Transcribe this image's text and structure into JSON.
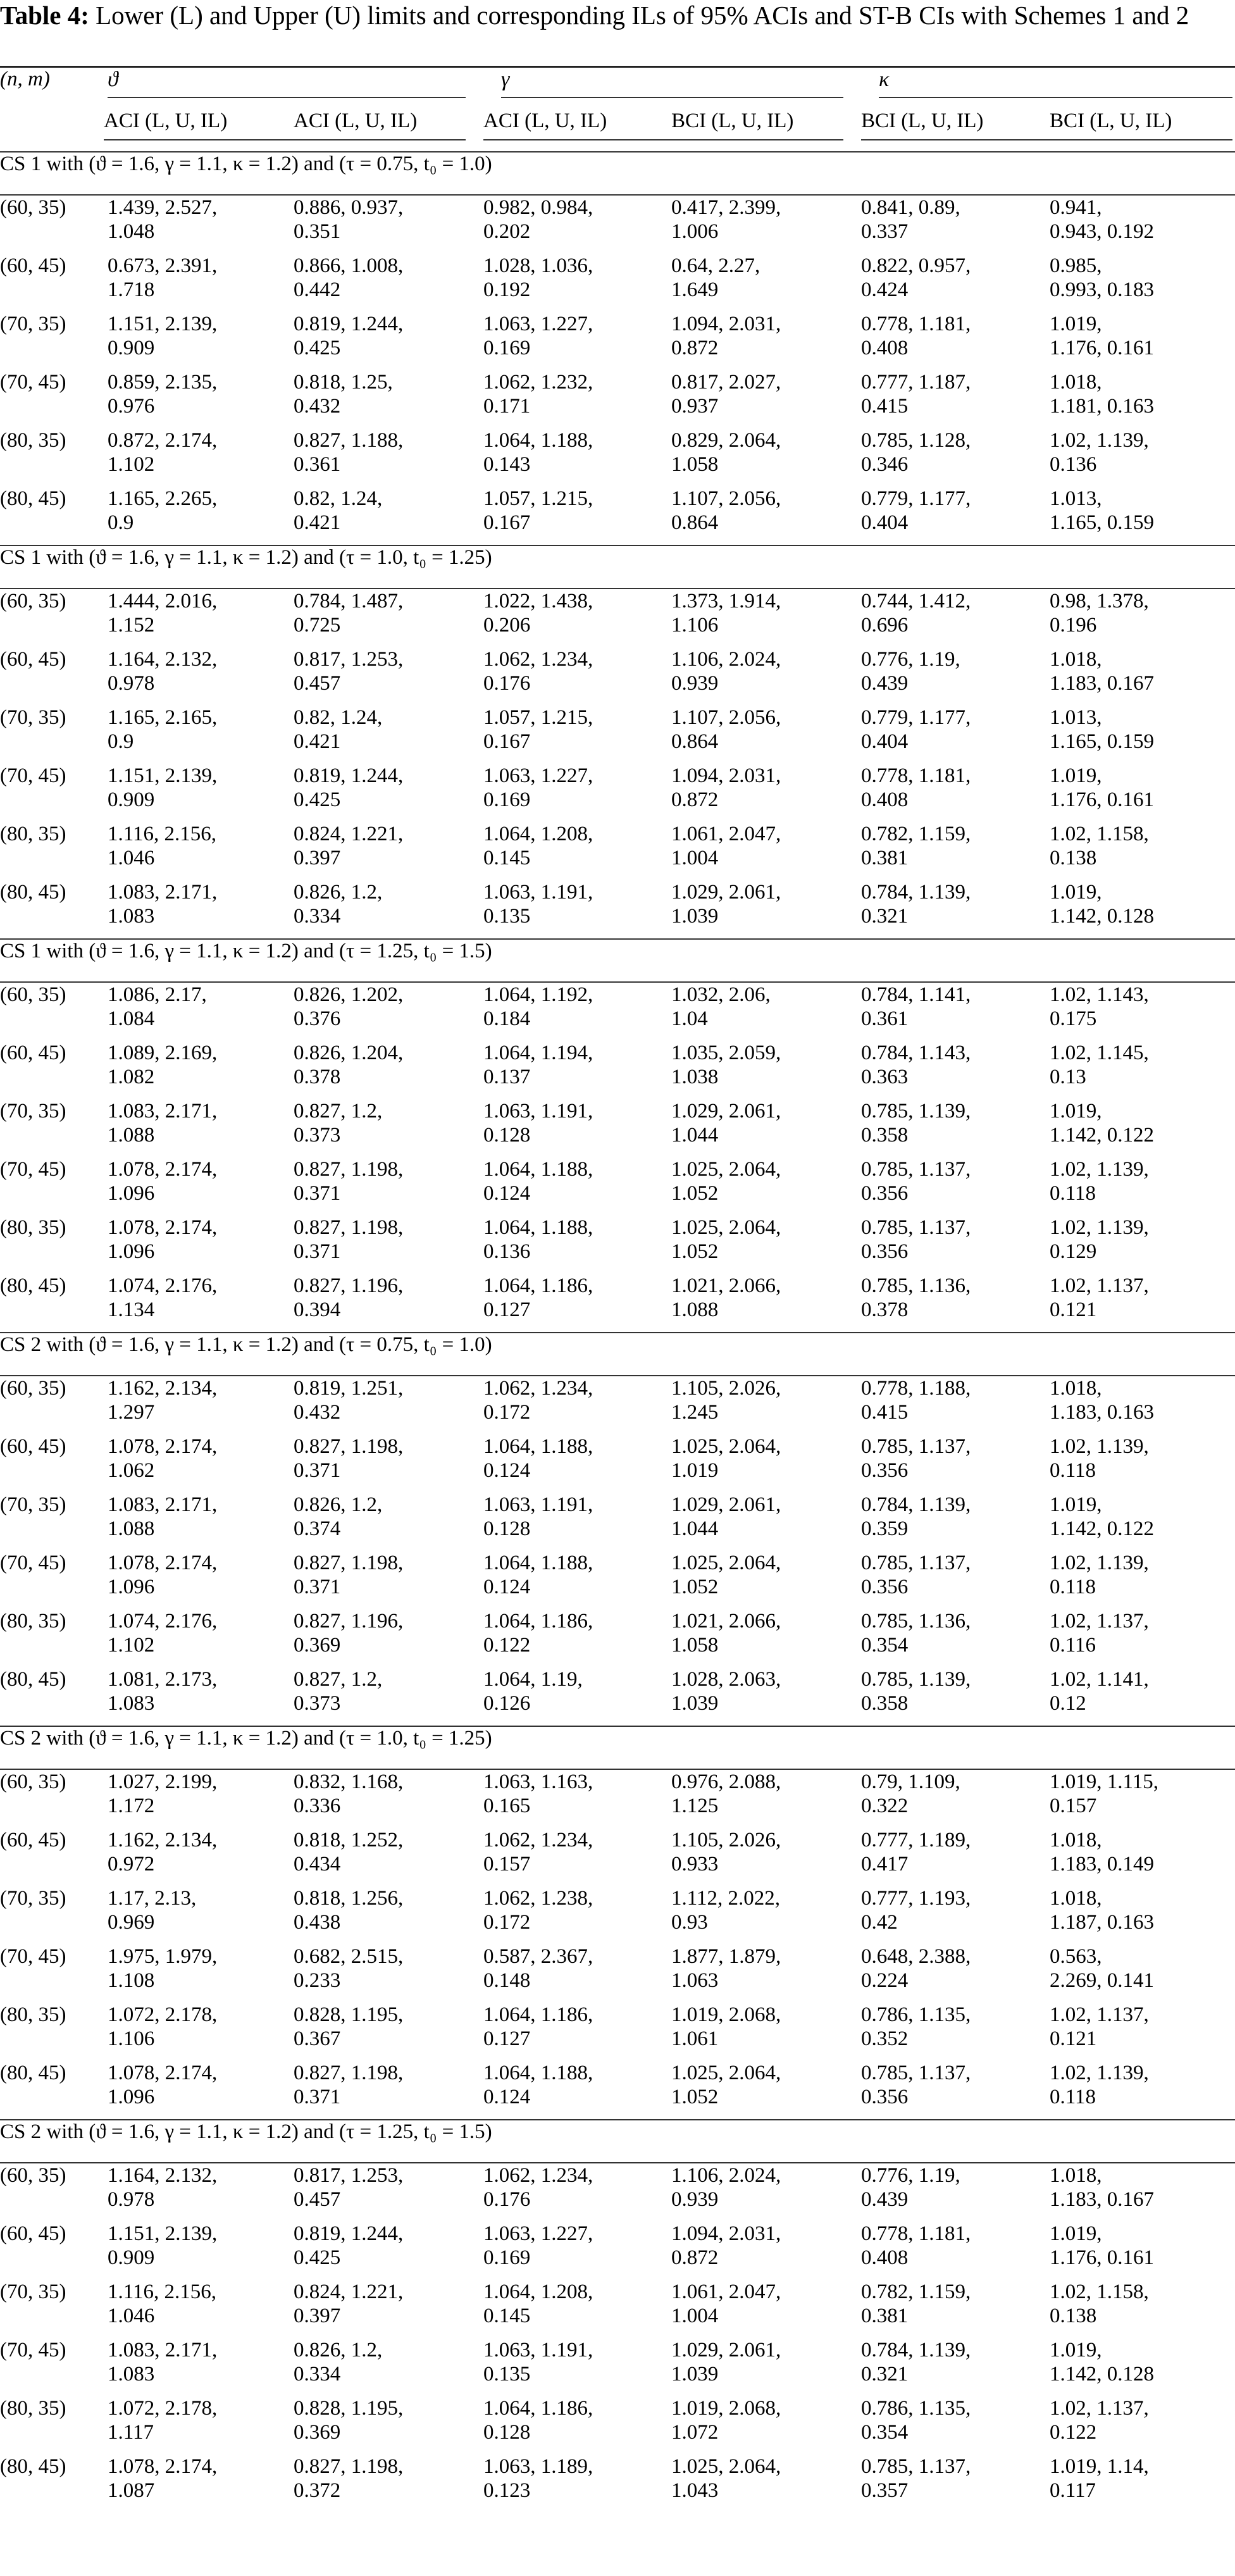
{
  "caption": {
    "label": "Table 4:",
    "text": " Lower (L) and Upper (U) limits and corresponding ILs of 95% ACIs and ST-B CIs with Schemes 1 and 2"
  },
  "header": {
    "nm": "(n, m)",
    "groups": [
      "ϑ",
      "γ",
      "κ"
    ],
    "sub": [
      "ACI (L, U, IL)",
      "ACI (L, U, IL)",
      "ACI (L, U, IL)",
      "BCI (L, U, IL)",
      "BCI (L, U, IL)",
      "BCI (L, U, IL)"
    ]
  },
  "sections": [
    {
      "title": "CS 1 with (ϑ = 1.6, γ = 1.1, κ = 1.2) and (τ = 0.75, t₀ = 1.0)",
      "rows": [
        {
          "nm": "(60, 35)",
          "c": [
            "1.439, 2.527, 1.048",
            "0.886, 0.937, 0.351",
            "0.982, 0.984, 0.202",
            "0.417, 2.399, 1.006",
            "0.841, 0.89, 0.337",
            "0.941, 0.943, 0.192"
          ]
        },
        {
          "nm": "(60, 45)",
          "c": [
            "0.673, 2.391, 1.718",
            "0.866, 1.008, 0.442",
            "1.028, 1.036, 0.192",
            "0.64, 2.27, 1.649",
            "0.822, 0.957, 0.424",
            "0.985, 0.993, 0.183"
          ]
        },
        {
          "nm": "(70, 35)",
          "c": [
            "1.151, 2.139, 0.909",
            "0.819, 1.244, 0.425",
            "1.063, 1.227, 0.169",
            "1.094, 2.031, 0.872",
            "0.778, 1.181, 0.408",
            "1.019, 1.176, 0.161"
          ]
        },
        {
          "nm": "(70, 45)",
          "c": [
            "0.859, 2.135, 0.976",
            "0.818, 1.25, 0.432",
            "1.062, 1.232, 0.171",
            "0.817, 2.027, 0.937",
            "0.777, 1.187, 0.415",
            "1.018, 1.181, 0.163"
          ]
        },
        {
          "nm": "(80, 35)",
          "c": [
            "0.872, 2.174, 1.102",
            "0.827, 1.188, 0.361",
            "1.064, 1.188, 0.143",
            "0.829, 2.064, 1.058",
            "0.785, 1.128, 0.346",
            "1.02, 1.139, 0.136"
          ]
        },
        {
          "nm": "(80, 45)",
          "c": [
            "1.165, 2.265, 0.9",
            "0.82, 1.24, 0.421",
            "1.057, 1.215, 0.167",
            "1.107, 2.056, 0.864",
            "0.779, 1.177, 0.404",
            "1.013, 1.165, 0.159"
          ]
        }
      ]
    },
    {
      "title": "CS 1 with (ϑ = 1.6, γ = 1.1, κ = 1.2) and (τ = 1.0, t₀ = 1.25)",
      "rows": [
        {
          "nm": "(60, 35)",
          "c": [
            "1.444, 2.016, 1.152",
            "0.784, 1.487, 0.725",
            "1.022, 1.438, 0.206",
            "1.373, 1.914, 1.106",
            "0.744, 1.412, 0.696",
            "0.98, 1.378, 0.196"
          ]
        },
        {
          "nm": "(60, 45)",
          "c": [
            "1.164, 2.132, 0.978",
            "0.817, 1.253, 0.457",
            "1.062, 1.234, 0.176",
            "1.106, 2.024, 0.939",
            "0.776, 1.19, 0.439",
            "1.018, 1.183, 0.167"
          ]
        },
        {
          "nm": "(70, 35)",
          "c": [
            "1.165, 2.165, 0.9",
            "0.82, 1.24, 0.421",
            "1.057, 1.215, 0.167",
            "1.107, 2.056, 0.864",
            "0.779, 1.177, 0.404",
            "1.013, 1.165, 0.159"
          ]
        },
        {
          "nm": "(70, 45)",
          "c": [
            "1.151, 2.139, 0.909",
            "0.819, 1.244, 0.425",
            "1.063, 1.227, 0.169",
            "1.094, 2.031, 0.872",
            "0.778, 1.181, 0.408",
            "1.019, 1.176, 0.161"
          ]
        },
        {
          "nm": "(80, 35)",
          "c": [
            "1.116, 2.156, 1.046",
            "0.824, 1.221, 0.397",
            "1.064, 1.208, 0.145",
            "1.061, 2.047, 1.004",
            "0.782, 1.159, 0.381",
            "1.02, 1.158, 0.138"
          ]
        },
        {
          "nm": "(80, 45)",
          "c": [
            "1.083, 2.171, 1.083",
            "0.826, 1.2, 0.334",
            "1.063, 1.191, 0.135",
            "1.029, 2.061, 1.039",
            "0.784, 1.139, 0.321",
            "1.019, 1.142, 0.128"
          ]
        }
      ]
    },
    {
      "title": "CS 1 with (ϑ = 1.6, γ = 1.1, κ = 1.2) and (τ = 1.25, t₀ = 1.5)",
      "rows": [
        {
          "nm": "(60, 35)",
          "c": [
            "1.086, 2.17, 1.084",
            "0.826, 1.202, 0.376",
            "1.064, 1.192, 0.184",
            "1.032, 2.06, 1.04",
            "0.784, 1.141, 0.361",
            "1.02, 1.143, 0.175"
          ]
        },
        {
          "nm": "(60, 45)",
          "c": [
            "1.089, 2.169, 1.082",
            "0.826, 1.204, 0.378",
            "1.064, 1.194, 0.137",
            "1.035, 2.059, 1.038",
            "0.784, 1.143, 0.363",
            "1.02, 1.145, 0.13"
          ]
        },
        {
          "nm": "(70, 35)",
          "c": [
            "1.083, 2.171, 1.088",
            "0.827, 1.2, 0.373",
            "1.063, 1.191, 0.128",
            "1.029, 2.061, 1.044",
            "0.785, 1.139, 0.358",
            "1.019, 1.142, 0.122"
          ]
        },
        {
          "nm": "(70, 45)",
          "c": [
            "1.078, 2.174, 1.096",
            "0.827, 1.198, 0.371",
            "1.064, 1.188, 0.124",
            "1.025, 2.064, 1.052",
            "0.785, 1.137, 0.356",
            "1.02, 1.139, 0.118"
          ]
        },
        {
          "nm": "(80, 35)",
          "c": [
            "1.078, 2.174, 1.096",
            "0.827, 1.198, 0.371",
            "1.064, 1.188, 0.136",
            "1.025, 2.064, 1.052",
            "0.785, 1.137, 0.356",
            "1.02, 1.139, 0.129"
          ]
        },
        {
          "nm": "(80, 45)",
          "c": [
            "1.074, 2.176, 1.134",
            "0.827, 1.196, 0.394",
            "1.064, 1.186, 0.127",
            "1.021, 2.066, 1.088",
            "0.785, 1.136, 0.378",
            "1.02, 1.137, 0.121"
          ]
        }
      ]
    },
    {
      "title": "CS 2 with (ϑ = 1.6, γ = 1.1, κ = 1.2) and (τ = 0.75, t₀ = 1.0)",
      "rows": [
        {
          "nm": "(60, 35)",
          "c": [
            "1.162, 2.134, 1.297",
            "0.819, 1.251, 0.432",
            "1.062, 1.234, 0.172",
            "1.105, 2.026, 1.245",
            "0.778, 1.188, 0.415",
            "1.018, 1.183, 0.163"
          ]
        },
        {
          "nm": "(60, 45)",
          "c": [
            "1.078, 2.174, 1.062",
            "0.827, 1.198, 0.371",
            "1.064, 1.188, 0.124",
            "1.025, 2.064, 1.019",
            "0.785, 1.137, 0.356",
            "1.02, 1.139, 0.118"
          ]
        },
        {
          "nm": "(70, 35)",
          "c": [
            "1.083, 2.171, 1.088",
            "0.826, 1.2, 0.374",
            "1.063, 1.191, 0.128",
            "1.029, 2.061, 1.044",
            "0.784, 1.139, 0.359",
            "1.019, 1.142, 0.122"
          ]
        },
        {
          "nm": "(70, 45)",
          "c": [
            "1.078, 2.174, 1.096",
            "0.827, 1.198, 0.371",
            "1.064, 1.188, 0.124",
            "1.025, 2.064, 1.052",
            "0.785, 1.137, 0.356",
            "1.02, 1.139, 0.118"
          ]
        },
        {
          "nm": "(80, 35)",
          "c": [
            "1.074, 2.176, 1.102",
            "0.827, 1.196, 0.369",
            "1.064, 1.186, 0.122",
            "1.021, 2.066, 1.058",
            "0.785, 1.136, 0.354",
            "1.02, 1.137, 0.116"
          ]
        },
        {
          "nm": "(80, 45)",
          "c": [
            "1.081, 2.173, 1.083",
            "0.827, 1.2, 0.373",
            "1.064, 1.19, 0.126",
            "1.028, 2.063, 1.039",
            "0.785, 1.139, 0.358",
            "1.02, 1.141, 0.12"
          ]
        }
      ]
    },
    {
      "title": "CS 2 with (ϑ = 1.6, γ = 1.1, κ = 1.2) and (τ = 1.0, t₀ = 1.25)",
      "rows": [
        {
          "nm": "(60, 35)",
          "c": [
            "1.027, 2.199, 1.172",
            "0.832, 1.168, 0.336",
            "1.063, 1.163, 0.165",
            "0.976, 2.088, 1.125",
            "0.79, 1.109, 0.322",
            "1.019, 1.115, 0.157"
          ]
        },
        {
          "nm": "(60, 45)",
          "c": [
            "1.162, 2.134, 0.972",
            "0.818, 1.252, 0.434",
            "1.062, 1.234, 0.157",
            "1.105, 2.026, 0.933",
            "0.777, 1.189, 0.417",
            "1.018, 1.183, 0.149"
          ]
        },
        {
          "nm": "(70, 35)",
          "c": [
            "1.17, 2.13, 0.969",
            "0.818, 1.256, 0.438",
            "1.062, 1.238, 0.172",
            "1.112, 2.022, 0.93",
            "0.777, 1.193, 0.42",
            "1.018, 1.187, 0.163"
          ]
        },
        {
          "nm": "(70, 45)",
          "c": [
            "1.975, 1.979, 1.108",
            "0.682, 2.515, 0.233",
            "0.587, 2.367, 0.148",
            "1.877, 1.879, 1.063",
            "0.648, 2.388, 0.224",
            "0.563, 2.269, 0.141"
          ]
        },
        {
          "nm": "(80, 35)",
          "c": [
            "1.072, 2.178, 1.106",
            "0.828, 1.195, 0.367",
            "1.064, 1.186, 0.127",
            "1.019, 2.068, 1.061",
            "0.786, 1.135, 0.352",
            "1.02, 1.137, 0.121"
          ]
        },
        {
          "nm": "(80, 45)",
          "c": [
            "1.078, 2.174, 1.096",
            "0.827, 1.198, 0.371",
            "1.064, 1.188, 0.124",
            "1.025, 2.064, 1.052",
            "0.785, 1.137, 0.356",
            "1.02, 1.139, 0.118"
          ]
        }
      ]
    },
    {
      "title": "CS 2 with (ϑ = 1.6, γ = 1.1, κ = 1.2) and (τ = 1.25, t₀ = 1.5)",
      "rows": [
        {
          "nm": "(60, 35)",
          "c": [
            "1.164, 2.132, 0.978",
            "0.817, 1.253, 0.457",
            "1.062, 1.234, 0.176",
            "1.106, 2.024, 0.939",
            "0.776, 1.19, 0.439",
            "1.018, 1.183, 0.167"
          ]
        },
        {
          "nm": "(60, 45)",
          "c": [
            "1.151, 2.139, 0.909",
            "0.819, 1.244, 0.425",
            "1.063, 1.227, 0.169",
            "1.094, 2.031, 0.872",
            "0.778, 1.181, 0.408",
            "1.019, 1.176, 0.161"
          ]
        },
        {
          "nm": "(70, 35)",
          "c": [
            "1.116, 2.156, 1.046",
            "0.824, 1.221, 0.397",
            "1.064, 1.208, 0.145",
            "1.061, 2.047, 1.004",
            "0.782, 1.159, 0.381",
            "1.02, 1.158, 0.138"
          ]
        },
        {
          "nm": "(70, 45)",
          "c": [
            "1.083, 2.171, 1.083",
            "0.826, 1.2, 0.334",
            "1.063, 1.191, 0.135",
            "1.029, 2.061, 1.039",
            "0.784, 1.139, 0.321",
            "1.019, 1.142, 0.128"
          ]
        },
        {
          "nm": "(80, 35)",
          "c": [
            "1.072, 2.178, 1.117",
            "0.828, 1.195, 0.369",
            "1.064, 1.186, 0.128",
            "1.019, 2.068, 1.072",
            "0.786, 1.135, 0.354",
            "1.02, 1.137, 0.122"
          ]
        },
        {
          "nm": "(80, 45)",
          "c": [
            "1.078, 2.174, 1.087",
            "0.827, 1.198, 0.372",
            "1.063, 1.189, 0.123",
            "1.025, 2.064, 1.043",
            "0.785, 1.137, 0.357",
            "1.019, 1.14, 0.117"
          ]
        }
      ]
    }
  ]
}
